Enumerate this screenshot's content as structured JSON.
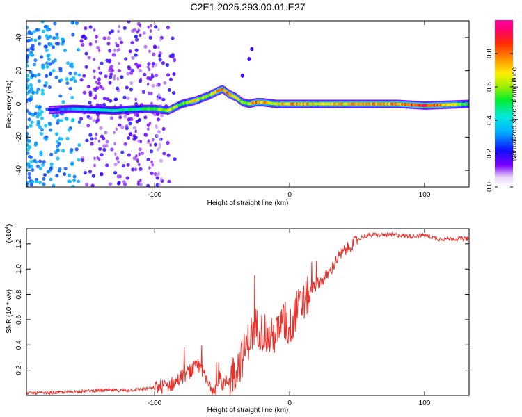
{
  "title": "C2E1.2025.293.00.01.E27",
  "chart_data": [
    {
      "type": "heatmap",
      "xlabel": "Height of straight line (km)",
      "ylabel": "Frequency (Hz)",
      "xlim": [
        -195,
        133
      ],
      "ylim": [
        -50,
        50
      ],
      "xticks": [
        -100,
        0,
        100
      ],
      "yticks": [
        -40,
        -20,
        0,
        20,
        40
      ],
      "colorbar": {
        "label": "Normalized spectral amplitude",
        "range": [
          0,
          1
        ],
        "ticks": [
          0.0,
          0.2,
          0.4,
          0.6,
          0.8
        ]
      },
      "ridge": {
        "height_km": [
          -190,
          -160,
          -130,
          -110,
          -100,
          -90,
          -80,
          -70,
          -60,
          -55,
          -50,
          -45,
          -40,
          -35,
          -30,
          -25,
          -20,
          -10,
          0,
          20,
          50,
          80,
          100,
          133
        ],
        "frequency_hz": [
          -4,
          -3,
          -4,
          -3,
          -3,
          -4,
          0,
          2,
          5,
          7,
          9,
          6,
          4,
          1,
          0,
          1,
          1,
          0,
          0,
          0,
          0,
          0,
          -1,
          0
        ],
        "normalized_amplitude": [
          0.1,
          0.35,
          0.45,
          0.5,
          0.55,
          0.65,
          0.55,
          0.7,
          0.6,
          0.75,
          0.85,
          0.8,
          0.7,
          0.6,
          0.65,
          0.8,
          0.75,
          0.65,
          0.8,
          0.7,
          0.75,
          0.8,
          0.95,
          0.5
        ]
      }
    },
    {
      "type": "line",
      "xlabel": "Height of straight line (km)",
      "ylabel": "SNR (10 * v/v)",
      "multiplier": "(x10",
      "multiplier_exp": "4",
      "multiplier_close": ")",
      "xlim": [
        -195,
        133
      ],
      "ylim": [
        0,
        1.32
      ],
      "xticks": [
        -100,
        0,
        100
      ],
      "yticks": [
        0.2,
        0.4,
        0.6,
        0.8,
        1.0,
        1.2
      ],
      "color": "#e8312a",
      "series": [
        {
          "name": "SNR",
          "x": [
            -195,
            -180,
            -160,
            -140,
            -120,
            -110,
            -100,
            -90,
            -85,
            -80,
            -75,
            -70,
            -65,
            -60,
            -55,
            -50,
            -45,
            -40,
            -35,
            -30,
            -25,
            -20,
            -15,
            -10,
            -5,
            0,
            5,
            10,
            15,
            20,
            25,
            30,
            35,
            40,
            45,
            50,
            55,
            60,
            70,
            80,
            90,
            100,
            110,
            120,
            133
          ],
          "y": [
            0.02,
            0.02,
            0.03,
            0.04,
            0.04,
            0.05,
            0.06,
            0.08,
            0.1,
            0.15,
            0.18,
            0.22,
            0.2,
            0.08,
            0.07,
            0.09,
            0.12,
            0.2,
            0.3,
            0.45,
            0.55,
            0.5,
            0.45,
            0.48,
            0.58,
            0.52,
            0.68,
            0.72,
            0.82,
            0.88,
            0.92,
            0.98,
            1.08,
            1.14,
            1.18,
            1.23,
            1.26,
            1.27,
            1.27,
            1.27,
            1.26,
            1.27,
            1.24,
            1.24,
            1.24
          ]
        }
      ]
    }
  ]
}
